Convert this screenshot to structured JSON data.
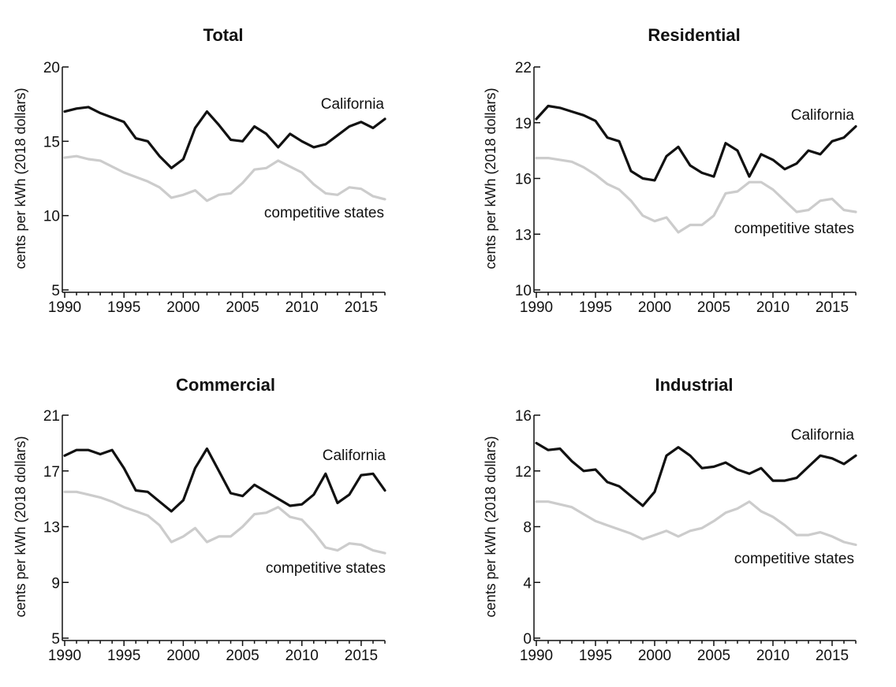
{
  "chart_data": [
    {
      "type": "line",
      "title": "Total",
      "ylabel": "cents per kWh (2018 dollars)",
      "ylim": [
        5,
        20
      ],
      "yticks": [
        5,
        10,
        15,
        20
      ],
      "xlim": [
        1990,
        2017
      ],
      "xticks": [
        1990,
        1995,
        2000,
        2005,
        2010,
        2015
      ],
      "grid": false,
      "x": [
        1990,
        1991,
        1992,
        1993,
        1994,
        1995,
        1996,
        1997,
        1998,
        1999,
        2000,
        2001,
        2002,
        2003,
        2004,
        2005,
        2006,
        2007,
        2008,
        2009,
        2010,
        2011,
        2012,
        2013,
        2014,
        2015,
        2016,
        2017
      ],
      "series": [
        {
          "name": "California",
          "color": "#111111",
          "values": [
            17.0,
            17.2,
            17.3,
            16.9,
            16.6,
            16.3,
            15.2,
            15.0,
            14.0,
            13.2,
            13.8,
            15.9,
            17.0,
            16.1,
            15.1,
            15.0,
            16.0,
            15.5,
            14.6,
            15.5,
            15.0,
            14.6,
            14.8,
            15.4,
            16.0,
            16.3,
            15.9,
            16.5
          ]
        },
        {
          "name": "competitive states",
          "color": "#cccccc",
          "values": [
            13.9,
            14.0,
            13.8,
            13.7,
            13.3,
            12.9,
            12.6,
            12.3,
            11.9,
            11.2,
            11.4,
            11.7,
            11.0,
            11.4,
            11.5,
            12.2,
            13.1,
            13.2,
            13.7,
            13.3,
            12.9,
            12.1,
            11.5,
            11.4,
            11.9,
            11.8,
            11.3,
            11.1
          ]
        }
      ]
    },
    {
      "type": "line",
      "title": "Residential",
      "ylabel": "cents per kWh (2018 dollars)",
      "ylim": [
        10,
        22
      ],
      "yticks": [
        10,
        13,
        16,
        19,
        22
      ],
      "xlim": [
        1990,
        2017
      ],
      "xticks": [
        1990,
        1995,
        2000,
        2005,
        2010,
        2015
      ],
      "grid": false,
      "x": [
        1990,
        1991,
        1992,
        1993,
        1994,
        1995,
        1996,
        1997,
        1998,
        1999,
        2000,
        2001,
        2002,
        2003,
        2004,
        2005,
        2006,
        2007,
        2008,
        2009,
        2010,
        2011,
        2012,
        2013,
        2014,
        2015,
        2016,
        2017
      ],
      "series": [
        {
          "name": "California",
          "color": "#111111",
          "values": [
            19.2,
            19.9,
            19.8,
            19.6,
            19.4,
            19.1,
            18.2,
            18.0,
            16.4,
            16.0,
            15.9,
            17.2,
            17.7,
            16.7,
            16.3,
            16.1,
            17.9,
            17.5,
            16.1,
            17.3,
            17.0,
            16.5,
            16.8,
            17.5,
            17.3,
            18.0,
            18.2,
            18.8
          ]
        },
        {
          "name": "competitive states",
          "color": "#cccccc",
          "values": [
            17.1,
            17.1,
            17.0,
            16.9,
            16.6,
            16.2,
            15.7,
            15.4,
            14.8,
            14.0,
            13.7,
            13.9,
            13.1,
            13.5,
            13.5,
            14.0,
            15.2,
            15.3,
            15.8,
            15.8,
            15.4,
            14.8,
            14.2,
            14.3,
            14.8,
            14.9,
            14.3,
            14.2
          ]
        }
      ]
    },
    {
      "type": "line",
      "title": "Commercial",
      "ylabel": "cents per kWh (2018 dollars)",
      "ylim": [
        5,
        21
      ],
      "yticks": [
        5,
        9,
        13,
        17,
        21
      ],
      "xlim": [
        1990,
        2017
      ],
      "xticks": [
        1990,
        1995,
        2000,
        2005,
        2010,
        2015
      ],
      "grid": false,
      "x": [
        1990,
        1991,
        1992,
        1993,
        1994,
        1995,
        1996,
        1997,
        1998,
        1999,
        2000,
        2001,
        2002,
        2003,
        2004,
        2005,
        2006,
        2007,
        2008,
        2009,
        2010,
        2011,
        2012,
        2013,
        2014,
        2015,
        2016,
        2017
      ],
      "series": [
        {
          "name": "California",
          "color": "#111111",
          "values": [
            18.1,
            18.5,
            18.5,
            18.2,
            18.5,
            17.2,
            15.6,
            15.5,
            14.8,
            14.1,
            14.9,
            17.2,
            18.6,
            17.0,
            15.4,
            15.2,
            16.0,
            15.5,
            15.0,
            14.5,
            14.6,
            15.3,
            16.8,
            14.7,
            15.3,
            16.7,
            16.8,
            15.6
          ]
        },
        {
          "name": "competitive states",
          "color": "#cccccc",
          "values": [
            15.5,
            15.5,
            15.3,
            15.1,
            14.8,
            14.4,
            14.1,
            13.8,
            13.1,
            11.9,
            12.3,
            12.9,
            11.9,
            12.3,
            12.3,
            13.0,
            13.9,
            14.0,
            14.4,
            13.7,
            13.5,
            12.6,
            11.5,
            11.3,
            11.8,
            11.7,
            11.3,
            11.1
          ]
        }
      ]
    },
    {
      "type": "line",
      "title": "Industrial",
      "ylabel": "cents per kWh (2018 dollars)",
      "ylim": [
        0,
        16
      ],
      "yticks": [
        0,
        4,
        8,
        12,
        16
      ],
      "xlim": [
        1990,
        2017
      ],
      "xticks": [
        1990,
        1995,
        2000,
        2005,
        2010,
        2015
      ],
      "grid": false,
      "x": [
        1990,
        1991,
        1992,
        1993,
        1994,
        1995,
        1996,
        1997,
        1998,
        1999,
        2000,
        2001,
        2002,
        2003,
        2004,
        2005,
        2006,
        2007,
        2008,
        2009,
        2010,
        2011,
        2012,
        2013,
        2014,
        2015,
        2016,
        2017
      ],
      "series": [
        {
          "name": "California",
          "color": "#111111",
          "values": [
            14.0,
            13.5,
            13.6,
            12.7,
            12.0,
            12.1,
            11.2,
            10.9,
            10.2,
            9.5,
            10.5,
            13.1,
            13.7,
            13.1,
            12.2,
            12.3,
            12.6,
            12.1,
            11.8,
            12.2,
            11.3,
            11.3,
            11.5,
            12.3,
            13.1,
            12.9,
            12.5,
            13.1
          ]
        },
        {
          "name": "competitive states",
          "color": "#cccccc",
          "values": [
            9.8,
            9.8,
            9.6,
            9.4,
            8.9,
            8.4,
            8.1,
            7.8,
            7.5,
            7.1,
            7.4,
            7.7,
            7.3,
            7.7,
            7.9,
            8.4,
            9.0,
            9.3,
            9.8,
            9.1,
            8.7,
            8.1,
            7.4,
            7.4,
            7.6,
            7.3,
            6.9,
            6.7
          ]
        }
      ]
    }
  ]
}
